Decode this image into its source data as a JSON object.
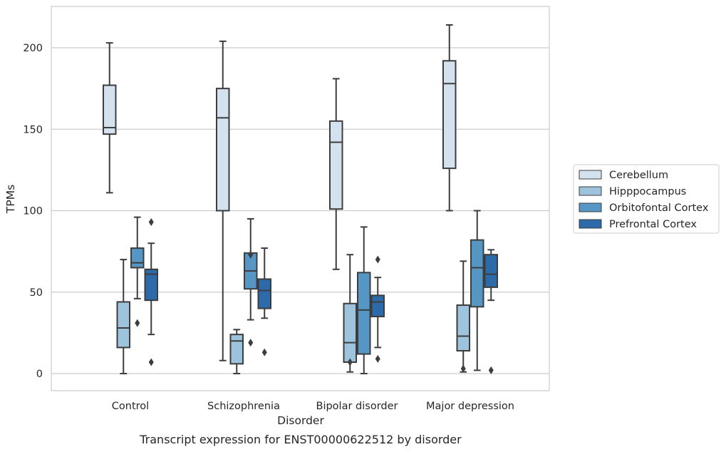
{
  "chart_data": {
    "type": "box",
    "title": "",
    "caption": "Transcript expression for ENST00000622512 by disorder",
    "xlabel": "Disorder",
    "ylabel": "TPMs",
    "ylim": [
      -10,
      225
    ],
    "yticks": [
      0,
      50,
      100,
      150,
      200
    ],
    "grid": "horizontal",
    "legend_position": "right",
    "categories": [
      "Control",
      "Schizophrenia",
      "Bipolar disorder",
      "Major depression"
    ],
    "series": [
      {
        "name": "Cerebellum",
        "color": "#d4e2f0",
        "boxes": [
          {
            "whislo": 111,
            "q1": 147,
            "med": 151,
            "q3": 177,
            "whishi": 203,
            "fliers": []
          },
          {
            "whislo": 8,
            "q1": 100,
            "med": 157,
            "q3": 175,
            "whishi": 204,
            "fliers": []
          },
          {
            "whislo": 64,
            "q1": 101,
            "med": 142,
            "q3": 155,
            "whishi": 181,
            "fliers": []
          },
          {
            "whislo": 100,
            "q1": 126,
            "med": 178,
            "q3": 192,
            "whishi": 214,
            "fliers": []
          }
        ]
      },
      {
        "name": "Hipppocampus",
        "color": "#9dc4dc",
        "boxes": [
          {
            "whislo": 0,
            "q1": 16,
            "med": 28,
            "q3": 44,
            "whishi": 70,
            "fliers": []
          },
          {
            "whislo": 0,
            "q1": 6,
            "med": 20,
            "q3": 24,
            "whishi": 27,
            "fliers": []
          },
          {
            "whislo": 1,
            "q1": 7,
            "med": 19,
            "q3": 43,
            "whishi": 73,
            "fliers": [
              7
            ]
          },
          {
            "whislo": 1,
            "q1": 14,
            "med": 23,
            "q3": 42,
            "whishi": 69,
            "fliers": [
              3
            ]
          }
        ]
      },
      {
        "name": "Orbitofontal Cortex",
        "color": "#5696c4",
        "boxes": [
          {
            "whislo": 46,
            "q1": 65,
            "med": 68,
            "q3": 77,
            "whishi": 96,
            "fliers": [
              31
            ]
          },
          {
            "whislo": 33,
            "q1": 52,
            "med": 63,
            "q3": 74,
            "whishi": 95,
            "fliers": [
              73,
              19
            ]
          },
          {
            "whislo": 0,
            "q1": 12,
            "med": 39,
            "q3": 62,
            "whishi": 90,
            "fliers": []
          },
          {
            "whislo": 2,
            "q1": 41,
            "med": 65,
            "q3": 82,
            "whishi": 100,
            "fliers": []
          }
        ]
      },
      {
        "name": "Prefrontal Cortex",
        "color": "#2c6aaa",
        "boxes": [
          {
            "whislo": 24,
            "q1": 45,
            "med": 61,
            "q3": 64,
            "whishi": 80,
            "fliers": [
              93,
              7
            ]
          },
          {
            "whislo": 34,
            "q1": 40,
            "med": 51,
            "q3": 58,
            "whishi": 77,
            "fliers": [
              13
            ]
          },
          {
            "whislo": 16,
            "q1": 35,
            "med": 44,
            "q3": 48,
            "whishi": 59,
            "fliers": [
              70,
              9
            ]
          },
          {
            "whislo": 45,
            "q1": 53,
            "med": 61,
            "q3": 73,
            "whishi": 76,
            "fliers": [
              2
            ]
          }
        ]
      }
    ]
  }
}
